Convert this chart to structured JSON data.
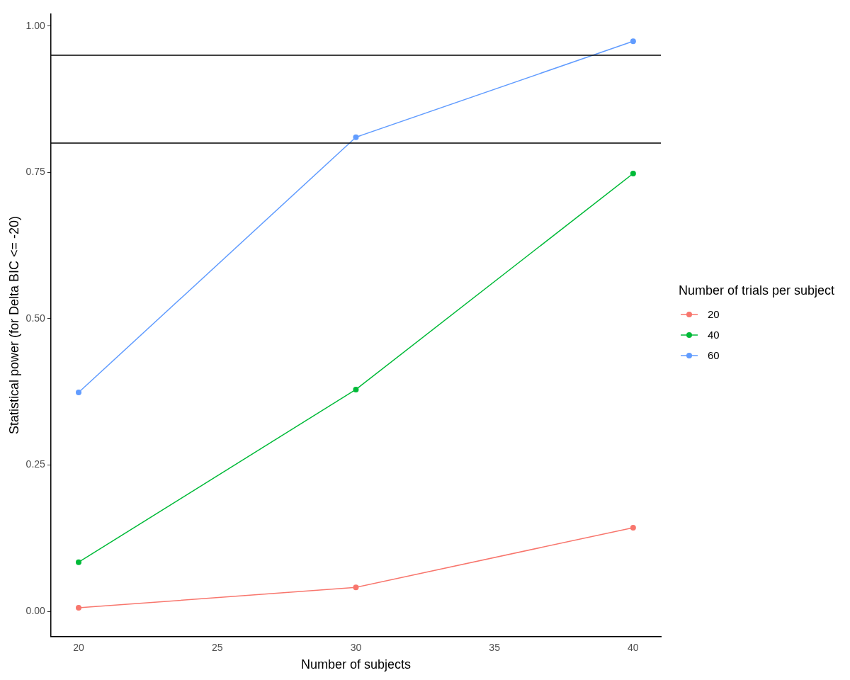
{
  "chart_data": {
    "type": "line",
    "xlabel": "Number of subjects",
    "ylabel": "Statistical power (for Delta BIC <= -20)",
    "legend_title": "Number of trials per subject",
    "legend": "right",
    "marker": "circle",
    "grid": false,
    "x": [
      20,
      30,
      40
    ],
    "series": [
      {
        "name": "20",
        "color": "#f8766d",
        "values": [
          0.006,
          0.041,
          0.143
        ]
      },
      {
        "name": "40",
        "color": "#00ba38",
        "values": [
          0.084,
          0.379,
          0.748
        ]
      },
      {
        "name": "60",
        "color": "#619cff",
        "values": [
          0.374,
          0.81,
          0.974
        ]
      }
    ],
    "xlim": [
      19,
      41
    ],
    "xticks": [
      20,
      25,
      30,
      35,
      40
    ],
    "ylim": [
      -0.043,
      1.021
    ],
    "yticks": [
      {
        "value": 0,
        "label": "0.00"
      },
      {
        "value": 0.25,
        "label": "0.25"
      },
      {
        "value": 0.5,
        "label": "0.50"
      },
      {
        "value": 0.75,
        "label": "0.75"
      },
      {
        "value": 1,
        "label": "1.00"
      }
    ],
    "ref_lines": [
      {
        "axis": "y",
        "value": 0.95,
        "label": null,
        "color": "#000000"
      },
      {
        "axis": "y",
        "value": 0.8,
        "label": null,
        "color": "#000000"
      }
    ]
  }
}
